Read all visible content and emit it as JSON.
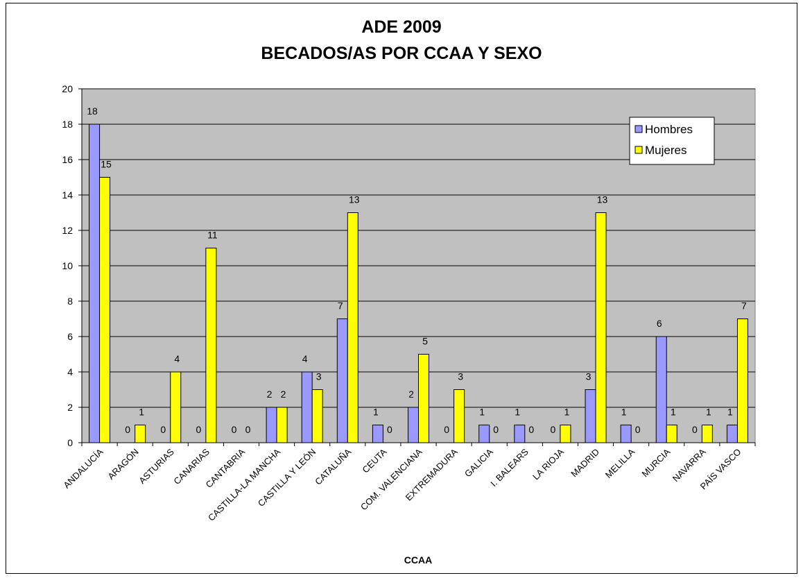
{
  "chart_data": {
    "type": "bar",
    "title": "ADE 2009",
    "subtitle": "BECADOS/AS POR CCAA Y SEXO",
    "xlabel": "CCAA",
    "ylabel": "",
    "ylim": [
      0,
      20
    ],
    "yticks": [
      0,
      2,
      4,
      6,
      8,
      10,
      12,
      14,
      16,
      18,
      20
    ],
    "grid": true,
    "legend_position": "top-right",
    "categories": [
      "ANDALUCÍA",
      "ARAGÓN",
      "ASTURIAS",
      "CANARIAS",
      "CANTABRIA",
      "CASTILLA-LA MANCHA",
      "CASTILLA Y LEÓN",
      "CATALUÑA",
      "CEUTA",
      "COM. VALENCIANA",
      "EXTREMADURA",
      "GALICIA",
      "I. BALEARS",
      "LA RIOJA",
      "MADRID",
      "MELILLA",
      "MURCIA",
      "NAVARRA",
      "PAÍS VASCO"
    ],
    "series": [
      {
        "name": "Hombres",
        "color": "#9999ff",
        "values": [
          18,
          0,
          0,
          0,
          0,
          2,
          4,
          7,
          1,
          2,
          0,
          1,
          1,
          0,
          3,
          1,
          6,
          0,
          1
        ]
      },
      {
        "name": "Mujeres",
        "color": "#ffff00",
        "values": [
          15,
          1,
          4,
          11,
          0,
          2,
          3,
          13,
          0,
          5,
          3,
          0,
          0,
          1,
          13,
          0,
          1,
          1,
          7
        ]
      }
    ],
    "plot_background": "#c0c0c0"
  }
}
